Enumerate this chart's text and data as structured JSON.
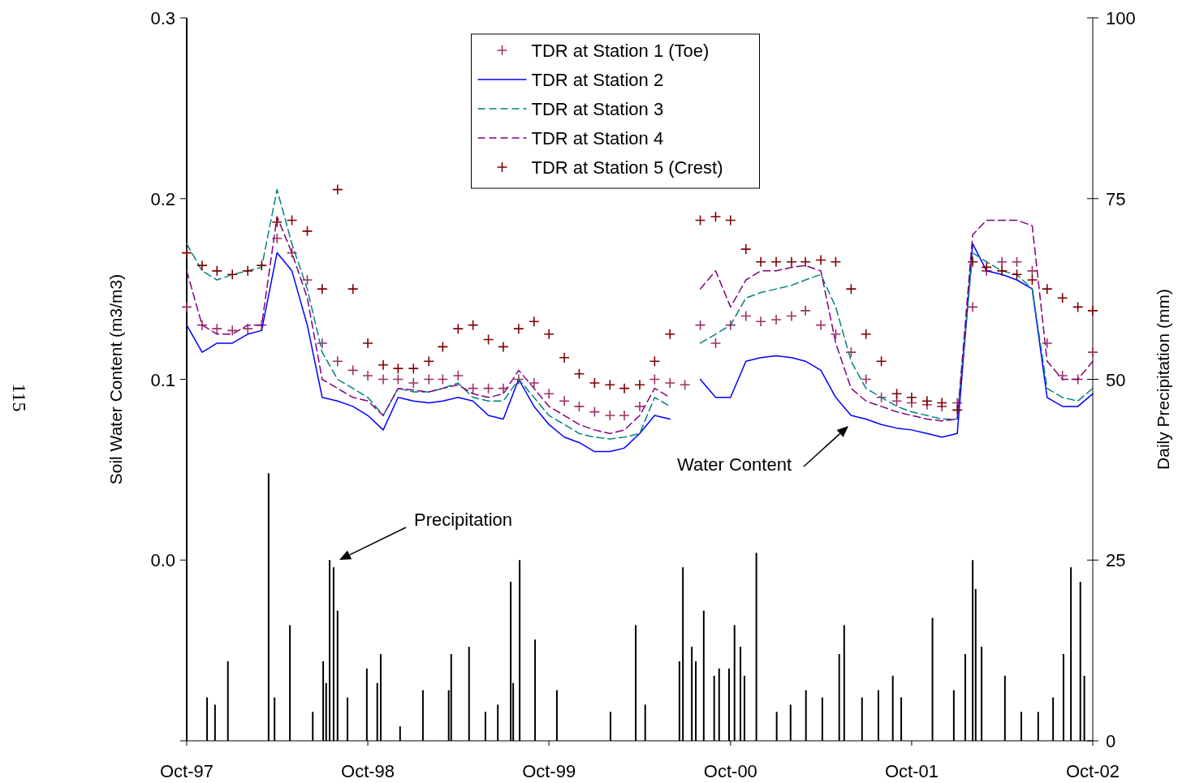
{
  "chart_data": {
    "type": "line",
    "xlim": [
      "1997-10-01",
      "2002-10-01"
    ],
    "xticks": [
      {
        "value": "1997-10-01",
        "label": "Oct-97"
      },
      {
        "value": "1998-10-01",
        "label": "Oct-98"
      },
      {
        "value": "1999-10-01",
        "label": "Oct-99"
      },
      {
        "value": "2000-10-01",
        "label": "Oct-00"
      },
      {
        "value": "2001-10-01",
        "label": "Oct-01"
      },
      {
        "value": "2002-10-01",
        "label": "Oct-02"
      }
    ],
    "ylim": [
      -0.1,
      0.3
    ],
    "yticks": [
      {
        "value": -0.1,
        "label": null
      },
      {
        "value": 0,
        "label": "0.0"
      },
      0.1,
      0.2,
      0.3
    ],
    "y2lim": [
      0,
      100
    ],
    "y2ticks": [
      0,
      25,
      50,
      75,
      100
    ],
    "ylabel": "Soil Water Content (m3/m3)",
    "y2label": "Daily Precipitation (mm)",
    "legend": "top",
    "grid": false,
    "x": [
      "1997-10-01",
      "1997-11-01",
      "1997-12-01",
      "1998-01-01",
      "1998-02-01",
      "1998-03-01",
      "1998-04-01",
      "1998-05-01",
      "1998-06-01",
      "1998-07-01",
      "1998-08-01",
      "1998-09-01",
      "1998-10-01",
      "1998-11-01",
      "1998-12-01",
      "1999-01-01",
      "1999-02-01",
      "1999-03-01",
      "1999-04-01",
      "1999-05-01",
      "1999-06-01",
      "1999-07-01",
      "1999-08-01",
      "1999-09-01",
      "1999-10-01",
      "1999-11-01",
      "1999-12-01",
      "2000-01-01",
      "2000-02-01",
      "2000-03-01",
      "2000-04-01",
      "2000-05-01",
      "2000-06-01",
      "2000-07-01",
      "2000-08-01",
      "2000-09-01",
      "2000-10-01",
      "2000-11-01",
      "2000-12-01",
      "2001-01-01",
      "2001-02-01",
      "2001-03-01",
      "2001-04-01",
      "2001-05-01",
      "2001-06-01",
      "2001-07-01",
      "2001-08-01",
      "2001-09-01",
      "2001-10-01",
      "2001-11-01",
      "2001-12-01",
      "2002-01-01",
      "2002-02-01",
      "2002-03-01",
      "2002-04-01",
      "2002-05-01",
      "2002-06-01",
      "2002-07-01",
      "2002-08-01",
      "2002-09-01",
      "2002-10-01"
    ],
    "series": [
      {
        "name": "TDR at Station 1 (Toe)",
        "type": "scatter",
        "marker": "cross",
        "color": "#993366",
        "values": [
          0.14,
          0.13,
          0.128,
          0.127,
          0.128,
          0.13,
          0.178,
          0.17,
          0.155,
          0.12,
          0.11,
          0.105,
          0.102,
          0.1,
          0.1,
          0.098,
          0.1,
          0.1,
          0.102,
          0.095,
          0.095,
          0.095,
          0.1,
          0.098,
          0.092,
          0.088,
          0.085,
          0.082,
          0.08,
          0.08,
          0.085,
          0.1,
          0.098,
          0.097,
          0.13,
          0.12,
          0.13,
          0.135,
          0.132,
          0.133,
          0.135,
          0.138,
          0.13,
          0.125,
          0.115,
          0.1,
          0.09,
          0.088,
          0.087,
          0.086,
          0.085,
          0.087,
          0.14,
          0.16,
          0.165,
          0.165,
          0.16,
          0.12,
          0.102,
          0.1,
          0.115
        ]
      },
      {
        "name": "TDR at Station 2",
        "line_style": "solid",
        "color": "#0000ff",
        "values": [
          0.13,
          0.115,
          0.12,
          0.12,
          0.125,
          0.127,
          0.17,
          0.16,
          0.13,
          0.09,
          0.088,
          0.085,
          0.08,
          0.072,
          0.09,
          0.088,
          0.087,
          0.088,
          0.09,
          0.088,
          0.08,
          0.078,
          0.1,
          0.085,
          0.075,
          0.068,
          0.065,
          0.06,
          0.06,
          0.062,
          0.07,
          0.08,
          0.078,
          null,
          0.1,
          0.09,
          0.09,
          0.11,
          0.112,
          0.113,
          0.112,
          0.11,
          0.105,
          0.09,
          0.08,
          0.078,
          0.075,
          0.073,
          0.072,
          0.07,
          0.068,
          0.07,
          0.175,
          0.16,
          0.158,
          0.155,
          0.15,
          0.09,
          0.085,
          0.085,
          0.092
        ]
      },
      {
        "name": "TDR at Station 3",
        "line_style": "dashed",
        "color": "#008080",
        "values": [
          0.175,
          0.16,
          0.155,
          0.158,
          0.16,
          0.162,
          0.205,
          0.175,
          0.15,
          0.115,
          0.1,
          0.095,
          0.09,
          0.08,
          0.095,
          0.093,
          0.093,
          0.095,
          0.098,
          0.09,
          0.088,
          0.088,
          0.1,
          0.09,
          0.08,
          0.075,
          0.07,
          0.068,
          0.067,
          0.068,
          0.07,
          0.09,
          0.085,
          null,
          0.12,
          0.125,
          0.13,
          0.145,
          0.148,
          0.15,
          0.152,
          0.155,
          0.158,
          0.14,
          0.11,
          0.095,
          0.09,
          0.085,
          0.082,
          0.08,
          0.078,
          0.078,
          0.17,
          0.165,
          0.16,
          0.158,
          0.15,
          0.095,
          0.09,
          0.088,
          0.095
        ]
      },
      {
        "name": "TDR at Station 4",
        "line_style": "dashed",
        "color": "#800080",
        "values": [
          0.16,
          0.13,
          0.125,
          0.125,
          0.13,
          0.13,
          0.19,
          0.17,
          0.145,
          0.1,
          0.095,
          0.09,
          0.088,
          0.08,
          0.095,
          0.094,
          0.093,
          0.095,
          0.097,
          0.092,
          0.09,
          0.092,
          0.105,
          0.095,
          0.085,
          0.08,
          0.075,
          0.072,
          0.07,
          0.072,
          0.08,
          0.095,
          0.09,
          null,
          0.15,
          0.16,
          0.14,
          0.155,
          0.16,
          0.16,
          0.162,
          0.163,
          0.16,
          0.12,
          0.095,
          0.088,
          0.085,
          0.082,
          0.08,
          0.078,
          0.077,
          0.078,
          0.18,
          0.188,
          0.188,
          0.188,
          0.185,
          0.11,
          0.1,
          0.1,
          0.11
        ]
      },
      {
        "name": "TDR at Station 5 (Crest)",
        "type": "scatter",
        "marker": "cross",
        "color": "#800000",
        "values": [
          0.17,
          0.163,
          0.16,
          0.158,
          0.16,
          0.163,
          0.187,
          0.188,
          0.182,
          0.15,
          0.205,
          0.15,
          0.12,
          0.108,
          0.106,
          0.106,
          0.11,
          0.118,
          0.128,
          0.13,
          0.122,
          0.118,
          0.128,
          0.132,
          0.125,
          0.112,
          0.103,
          0.098,
          0.097,
          0.095,
          0.097,
          0.11,
          0.125,
          null,
          0.188,
          0.19,
          0.188,
          0.172,
          0.165,
          0.165,
          0.165,
          0.165,
          0.166,
          0.165,
          0.15,
          0.125,
          0.11,
          0.092,
          0.09,
          0.088,
          0.087,
          0.083,
          0.165,
          0.162,
          0.16,
          0.158,
          0.155,
          0.15,
          0.145,
          0.14,
          0.138
        ]
      },
      {
        "type": "bar",
        "axis": "y2",
        "color": "#000000",
        "x": [
          "1997-11-11",
          "1997-11-27",
          "1997-12-23",
          "1998-03-15",
          "1998-03-27",
          "1998-04-27",
          "1998-06-12",
          "1998-07-03",
          "1998-07-09",
          "1998-07-16",
          "1998-07-24",
          "1998-08-01",
          "1998-08-21",
          "1998-09-29",
          "1998-10-20",
          "1998-10-27",
          "1998-12-05",
          "1999-01-20",
          "1999-03-13",
          "1999-03-18",
          "1999-04-23",
          "1999-05-26",
          "1999-06-20",
          "1999-07-16",
          "1999-07-21",
          "1999-08-03",
          "1999-09-03",
          "1999-10-17",
          "2000-02-02",
          "2000-03-24",
          "2000-04-12",
          "2000-06-20",
          "2000-06-27",
          "2000-07-15",
          "2000-07-23",
          "2000-08-08",
          "2000-08-29",
          "2000-09-08",
          "2000-09-28",
          "2000-10-09",
          "2000-10-21",
          "2000-10-29",
          "2000-11-22",
          "2001-01-02",
          "2001-01-30",
          "2001-03-02",
          "2001-04-04",
          "2001-05-08",
          "2001-05-18",
          "2001-06-23",
          "2001-07-26",
          "2001-08-24",
          "2001-09-10",
          "2001-11-12",
          "2001-12-25",
          "2002-01-17",
          "2002-02-01",
          "2002-02-07",
          "2002-02-19",
          "2002-04-07",
          "2002-05-10",
          "2002-06-13",
          "2002-07-13",
          "2002-08-03",
          "2002-08-18",
          "2002-09-06",
          "2002-09-14"
        ],
        "values": [
          6,
          5,
          11,
          37,
          6,
          16,
          4,
          11,
          8,
          25,
          24,
          18,
          6,
          10,
          8,
          12,
          2,
          7,
          7,
          12,
          13,
          4,
          5,
          22,
          8,
          25,
          14,
          7,
          4,
          16,
          5,
          11,
          24,
          13,
          11,
          18,
          9,
          10,
          10,
          16,
          13,
          9,
          26,
          4,
          5,
          7,
          6,
          12,
          16,
          6,
          7,
          9,
          6,
          17,
          7,
          12,
          25,
          21,
          13,
          9,
          4,
          4,
          6,
          12,
          24,
          22,
          9
        ]
      }
    ],
    "annotations": [
      "Water Content",
      "Precipitation",
      "115"
    ]
  }
}
